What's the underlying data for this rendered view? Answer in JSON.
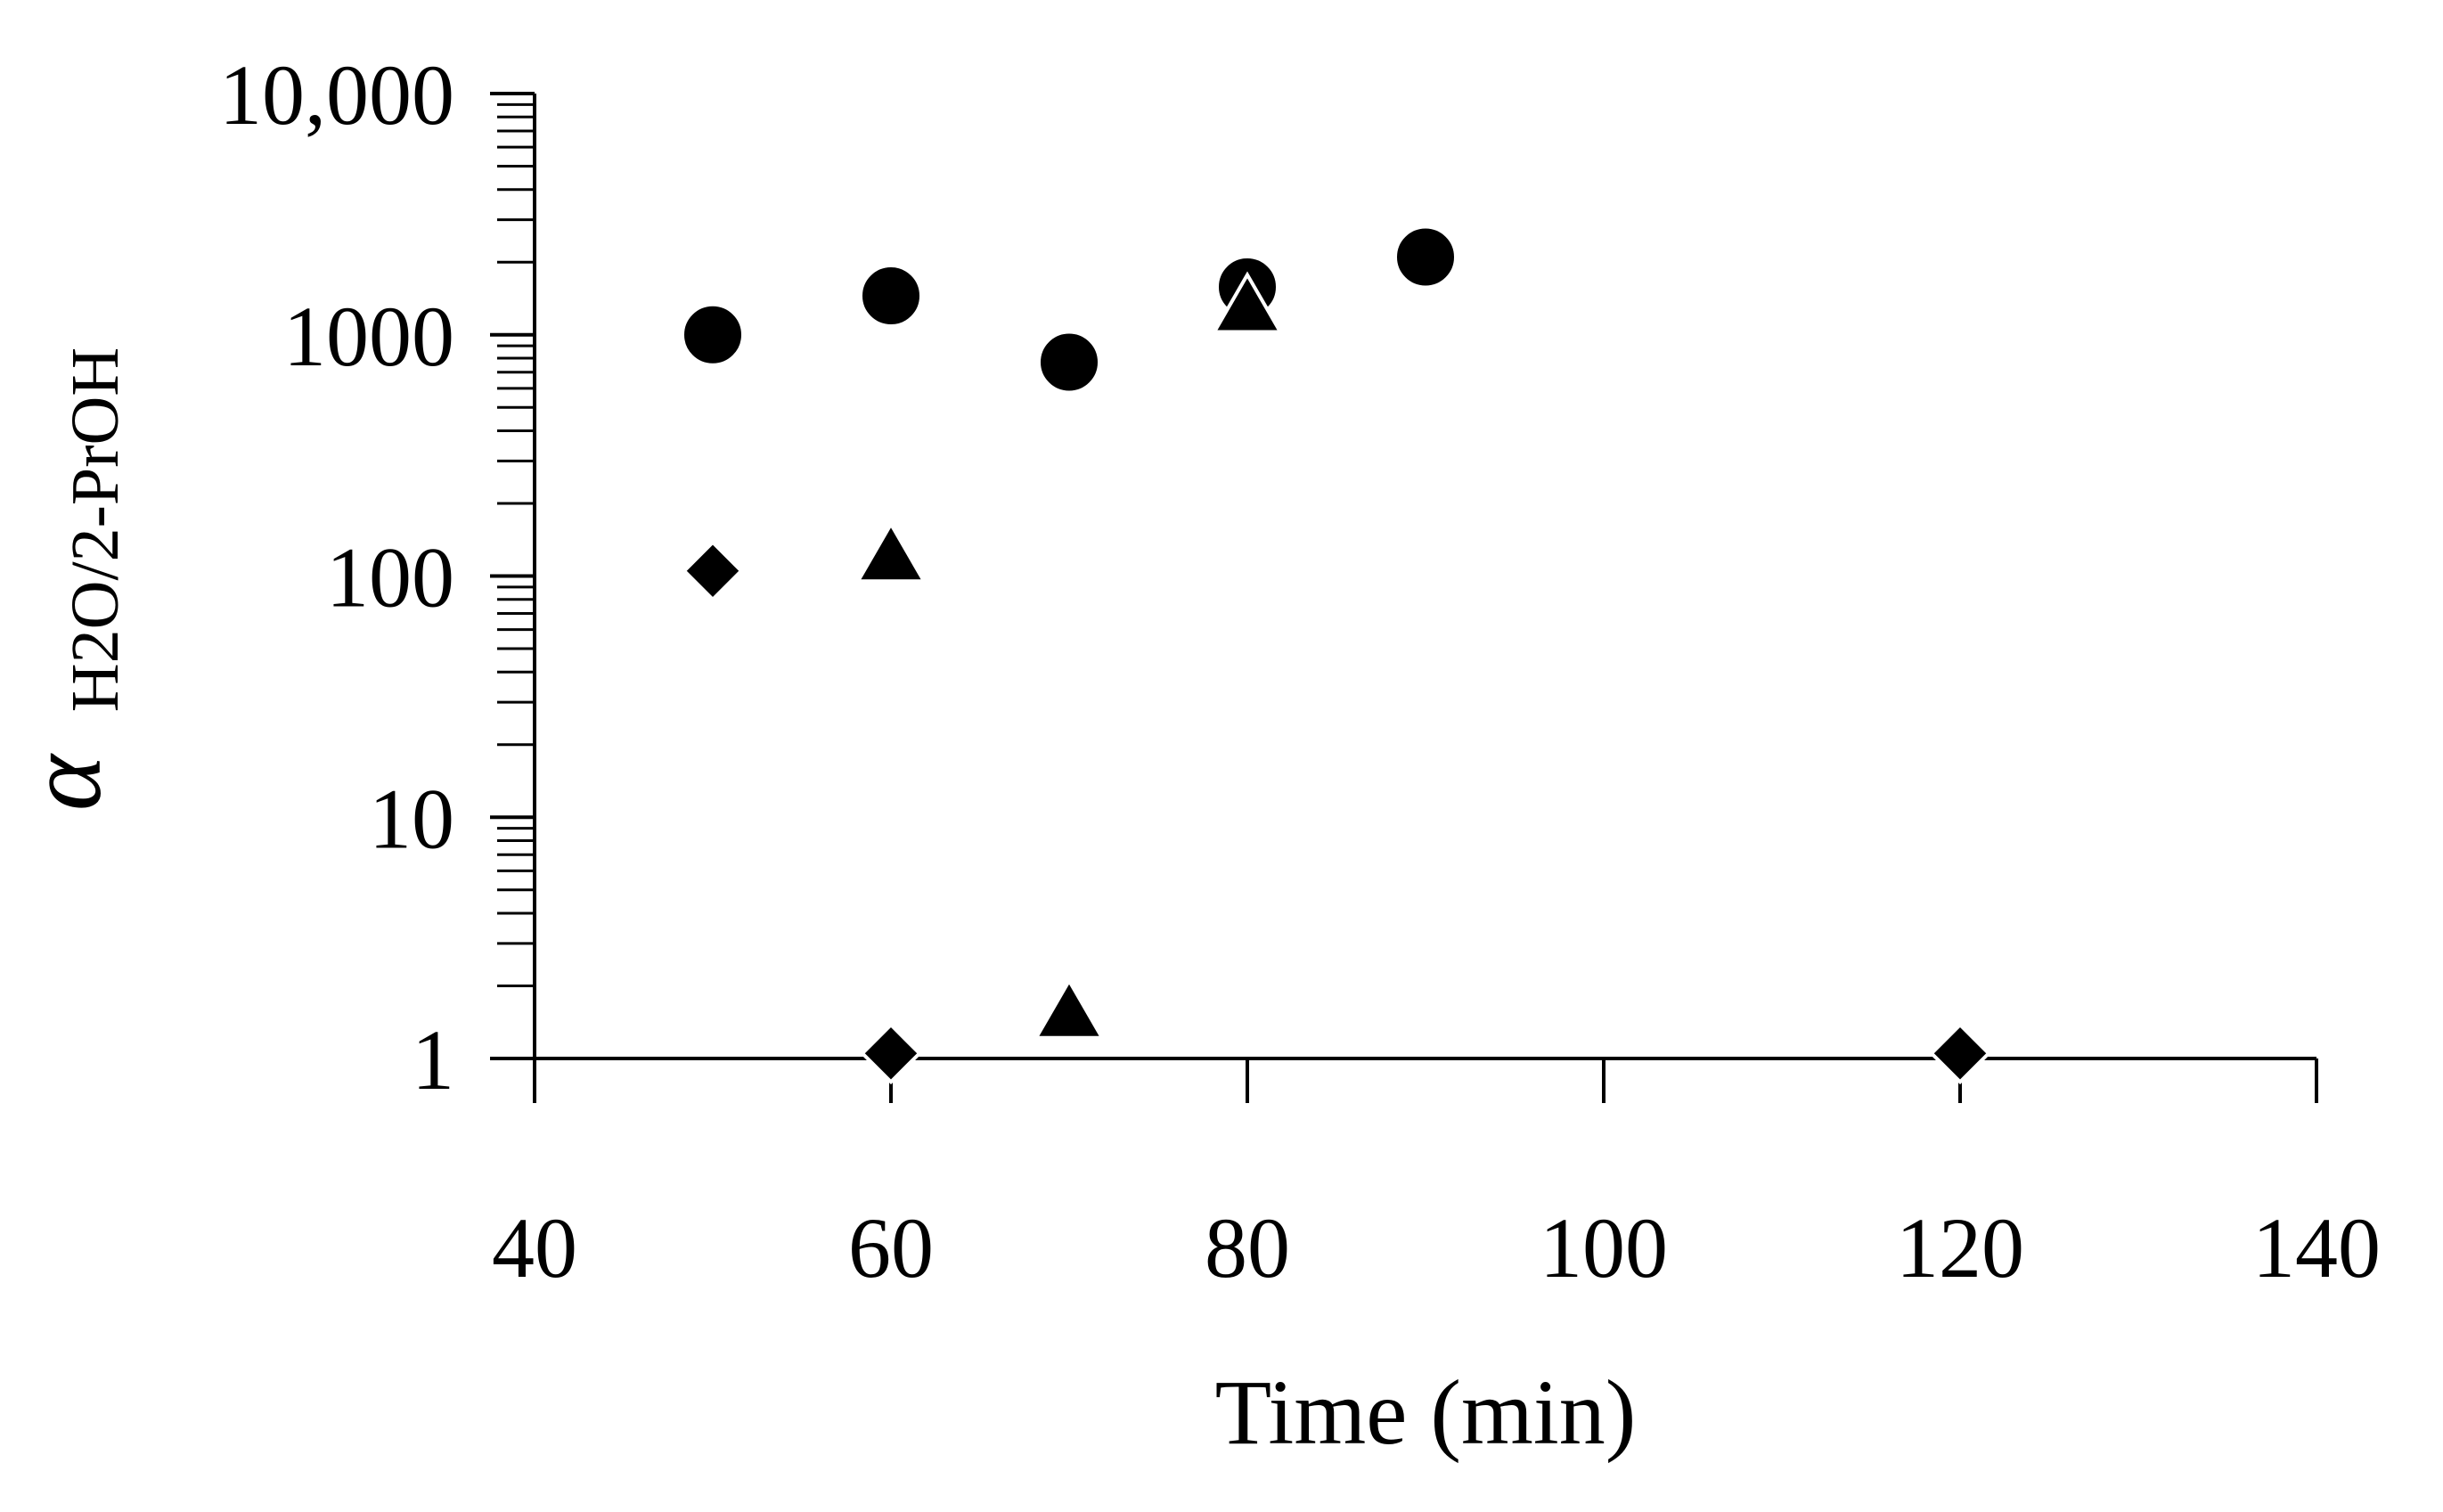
{
  "chart_data": {
    "type": "scatter",
    "title": "",
    "xlabel": "Time (min)",
    "ylabel": {
      "symbol": "α",
      "subscript": "H2O/2-PrOH"
    },
    "x_range": [
      40,
      140
    ],
    "x_ticks": [
      40,
      60,
      80,
      100,
      120,
      140
    ],
    "x_tick_labels": [
      "40",
      "60",
      "80",
      "100",
      "120",
      "140"
    ],
    "y_scale": "log",
    "y_range": [
      1,
      10000
    ],
    "y_ticks": [
      1,
      10,
      100,
      1000,
      10000
    ],
    "y_tick_labels": [
      "1",
      "10",
      "100",
      "1000",
      "10,000"
    ],
    "grid": false,
    "legend": "none",
    "series": [
      {
        "marker": "circle",
        "color": "#000000",
        "points": [
          {
            "x": 50,
            "y": 1000
          },
          {
            "x": 60,
            "y": 1450
          },
          {
            "x": 70,
            "y": 770
          },
          {
            "x": 80,
            "y": 1580
          },
          {
            "x": 90,
            "y": 2100
          }
        ]
      },
      {
        "marker": "triangle",
        "color": "#000000",
        "points": [
          {
            "x": 60,
            "y": 125
          },
          {
            "x": 70,
            "y": 1.6
          },
          {
            "x": 80,
            "y": 1350
          }
        ]
      },
      {
        "marker": "diamond",
        "color": "#000000",
        "points": [
          {
            "x": 50,
            "y": 105
          },
          {
            "x": 60,
            "y": 1.05
          },
          {
            "x": 120,
            "y": 1.05
          }
        ]
      }
    ]
  }
}
